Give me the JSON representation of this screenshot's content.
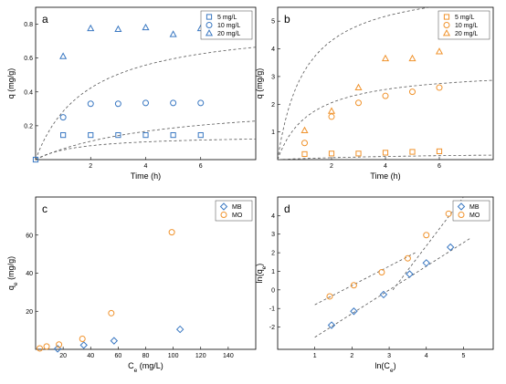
{
  "chart_data": [
    {
      "panel": "a",
      "type": "scatter",
      "xlabel": "Time (h)",
      "ylabel": "q (mg/g)",
      "xlim": [
        0,
        8
      ],
      "ylim": [
        0,
        0.9
      ],
      "xticks": [
        2,
        4,
        6
      ],
      "yticks": [
        0.2,
        0.4,
        0.6,
        0.8
      ],
      "xticklabels": [
        "2",
        "4",
        "6"
      ],
      "yticklabels": [
        "0.2",
        "0.4",
        "0.6",
        "0.8"
      ],
      "legend_position": "top-right",
      "color": "#3a78c2",
      "series": [
        {
          "name": "5 mg/L",
          "marker": "square",
          "x": [
            0,
            1,
            2,
            3,
            4,
            5,
            6
          ],
          "y": [
            0.0,
            0.145,
            0.145,
            0.145,
            0.145,
            0.145,
            0.145
          ],
          "fit": {
            "qe": 0.145,
            "k": 4.5
          }
        },
        {
          "name": "10 mg/L",
          "marker": "circle",
          "x": [
            1,
            2,
            3,
            4,
            5,
            6
          ],
          "y": [
            0.25,
            0.33,
            0.33,
            0.335,
            0.335,
            0.335
          ],
          "fit": {
            "qe": 0.36,
            "k": 0.6
          }
        },
        {
          "name": "20 mg/L",
          "marker": "triangle",
          "x": [
            1,
            2,
            3,
            4,
            5,
            6
          ],
          "y": [
            0.61,
            0.775,
            0.77,
            0.78,
            0.74,
            0.775
          ],
          "fit": {
            "qe": 0.82,
            "k": 0.65
          }
        }
      ]
    },
    {
      "panel": "b",
      "type": "scatter",
      "xlabel": "Time (h)",
      "ylabel": "q (mg/g)",
      "xlim": [
        0,
        8
      ],
      "ylim": [
        0,
        5.5
      ],
      "xticks": [
        2,
        4,
        6
      ],
      "yticks": [
        1,
        2,
        3,
        4,
        5
      ],
      "xticklabels": [
        "2",
        "4",
        "6"
      ],
      "yticklabels": [
        "1",
        "2",
        "3",
        "4",
        "5"
      ],
      "legend_position": "top-right",
      "color": "#f0922b",
      "series": [
        {
          "name": "5 mg/L",
          "marker": "square",
          "x": [
            1,
            2,
            3,
            4,
            5,
            6
          ],
          "y": [
            0.2,
            0.22,
            0.22,
            0.25,
            0.28,
            0.3
          ],
          "fit": {
            "qe": 0.3,
            "k": 0.5
          }
        },
        {
          "name": "10 mg/L",
          "marker": "circle",
          "x": [
            1,
            2,
            3,
            4,
            5,
            6
          ],
          "y": [
            0.6,
            1.55,
            2.05,
            2.3,
            2.45,
            2.6
          ],
          "fit": {
            "qe": 3.3,
            "k": 0.25
          }
        },
        {
          "name": "20 mg/L",
          "marker": "triangle",
          "x": [
            1,
            2,
            3,
            4,
            5,
            6
          ],
          "y": [
            1.05,
            1.75,
            2.6,
            3.65,
            3.65,
            3.9
          ],
          "fit": {
            "qe": 6.5,
            "k": 0.15
          }
        }
      ]
    },
    {
      "panel": "c",
      "type": "scatter",
      "xlabel": "C_e (mg/L)",
      "ylabel": "q_e (mg/g)",
      "xlim": [
        0,
        160
      ],
      "ylim": [
        0,
        80
      ],
      "xticks": [
        20,
        40,
        60,
        80,
        100,
        120,
        140
      ],
      "yticks": [
        20,
        40,
        60
      ],
      "xticklabels": [
        "20",
        "40",
        "60",
        "80",
        "100",
        "120",
        "140"
      ],
      "yticklabels": [
        "20",
        "40",
        "60"
      ],
      "legend_position": "top-right",
      "series": [
        {
          "name": "MB",
          "marker": "diamond",
          "color": "#3a78c2",
          "x": [
            16,
            35,
            57,
            105
          ],
          "y": [
            0.3,
            2.2,
            4.5,
            10.5
          ]
        },
        {
          "name": "MO",
          "marker": "circle",
          "color": "#f0922b",
          "x": [
            3,
            8,
            17,
            34,
            55,
            99
          ],
          "y": [
            0.5,
            1.5,
            2.5,
            5.5,
            19,
            61.5
          ]
        }
      ]
    },
    {
      "panel": "d",
      "type": "scatter",
      "xlabel": "ln(C_e)",
      "ylabel": "ln(q_e)",
      "xlim": [
        0,
        5.8
      ],
      "ylim": [
        -3.2,
        5
      ],
      "xticks": [
        1,
        2,
        3,
        4,
        5
      ],
      "yticks": [
        -2,
        -1,
        0,
        1,
        2,
        3,
        4
      ],
      "xticklabels": [
        "1",
        "2",
        "3",
        "4",
        "5"
      ],
      "yticklabels": [
        "-2",
        "-1",
        "0",
        "1",
        "2",
        "3",
        "4"
      ],
      "legend_position": "top-right",
      "series": [
        {
          "name": "MB",
          "marker": "diamond",
          "color": "#3a78c2",
          "x": [
            1.45,
            2.05,
            2.85,
            3.55,
            4.0,
            4.65
          ],
          "y": [
            -1.9,
            -1.15,
            -0.25,
            0.85,
            1.45,
            2.3
          ],
          "fit": {
            "x": [
              1.0,
              5.2
            ],
            "y": [
              -2.55,
              2.8
            ]
          }
        },
        {
          "name": "MO",
          "marker": "circle",
          "color": "#f0922b",
          "x": [
            1.4,
            2.05,
            2.8,
            3.5,
            4.0,
            4.6
          ],
          "y": [
            -0.35,
            0.25,
            0.95,
            1.7,
            2.95,
            4.1
          ],
          "fit1": {
            "x": [
              1.0,
              3.7
            ],
            "y": [
              -0.8,
              2.0
            ]
          },
          "fit2": {
            "x": [
              3.1,
              5.0
            ],
            "y": [
              0.0,
              5.0
            ]
          }
        }
      ]
    }
  ]
}
